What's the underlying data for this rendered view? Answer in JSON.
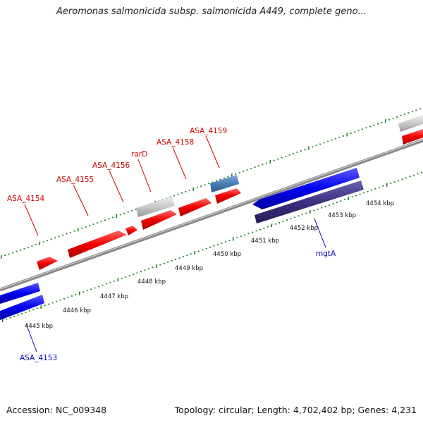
{
  "title": "Aeromonas salmonicida subsp. salmonicida A449, complete geno...",
  "footer": {
    "accession": "Accession: NC_009348",
    "summary": "Topology: circular; Length: 4,702,402 bp; Genes: 4,231"
  },
  "scale_labels": [
    "4445 kbp",
    "4446 kbp",
    "4447 kbp",
    "4448 kbp",
    "4449 kbp",
    "4450 kbp",
    "4451 kbp",
    "4452 kbp",
    "4453 kbp",
    "4454 kbp"
  ],
  "gene_labels": [
    {
      "text": "ASA_4154",
      "color": "#cc0000"
    },
    {
      "text": "ASA_4155",
      "color": "#cc0000"
    },
    {
      "text": "ASA_4156",
      "color": "#cc0000"
    },
    {
      "text": "rarD",
      "color": "#cc0000"
    },
    {
      "text": "ASA_4158",
      "color": "#cc0000"
    },
    {
      "text": "ASA_4159",
      "color": "#cc0000"
    },
    {
      "text": "mgtA",
      "color": "#0000bb"
    },
    {
      "text": "ASA_4153",
      "color": "#0000bb"
    }
  ],
  "colors": {
    "forward_gene": "#e00000",
    "reverse_gene": "#0000e0",
    "pseudo_gene": "#c8c8c8",
    "rna_gene": "#4a7fb5",
    "cds_feature": "#3c3080",
    "backbone": "#888888",
    "tick": "#1a7a1a"
  }
}
